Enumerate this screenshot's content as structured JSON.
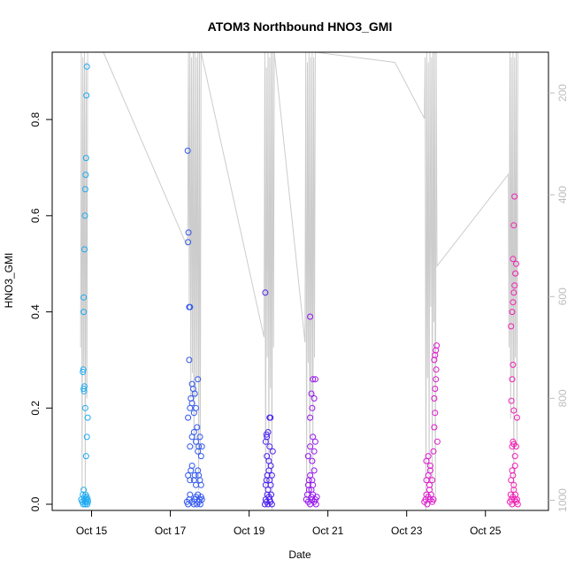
{
  "chart_data": {
    "type": "scatter",
    "title": "ATOM3 Northbound HNO3_GMI",
    "xlabel": "Date",
    "ylabel": "HNO3_GMI",
    "x_ticks": [
      "Oct 15",
      "Oct 17",
      "Oct 19",
      "Oct 21",
      "Oct 23",
      "Oct 25"
    ],
    "x_tick_days": [
      15,
      17,
      19,
      21,
      23,
      25
    ],
    "xlim_days": [
      14.0,
      26.6
    ],
    "y_ticks": [
      "0.0",
      "0.2",
      "0.4",
      "0.6",
      "0.8"
    ],
    "y_tick_values": [
      0.0,
      0.2,
      0.4,
      0.6,
      0.8
    ],
    "ylim": [
      0.0,
      0.94
    ],
    "right_axis": {
      "ticks": [
        "200",
        "400",
        "600",
        "800",
        "1000"
      ],
      "tick_values": [
        200,
        400,
        600,
        800,
        1000
      ],
      "lim": [
        1020,
        120
      ],
      "color": "#bdbdbd"
    },
    "grid": false,
    "series": [
      {
        "color": "#1eaaf0",
        "x": [
          14.74,
          14.76,
          14.78,
          14.79,
          14.8,
          14.81,
          14.82,
          14.83,
          14.84,
          14.85,
          14.86,
          14.87,
          14.88,
          14.89,
          14.9,
          14.91,
          14.78,
          14.79,
          14.8,
          14.81,
          14.82,
          14.84,
          14.86,
          14.88,
          14.9,
          14.8,
          14.8,
          14.82,
          14.83,
          14.84,
          14.85,
          14.86,
          14.87,
          14.88
        ],
        "y": [
          0.01,
          0.005,
          0.02,
          0.0,
          0.03,
          0.01,
          0.015,
          0.005,
          0.0,
          0.02,
          0.01,
          0.005,
          0.015,
          0.0,
          0.01,
          0.005,
          0.275,
          0.28,
          0.24,
          0.235,
          0.245,
          0.2,
          0.1,
          0.14,
          0.18,
          0.43,
          0.4,
          0.53,
          0.6,
          0.655,
          0.685,
          0.72,
          0.85,
          0.91
        ]
      },
      {
        "color": "#2f55ee",
        "x": [
          17.42,
          17.45,
          17.48,
          17.5,
          17.55,
          17.6,
          17.62,
          17.65,
          17.68,
          17.7,
          17.72,
          17.74,
          17.76,
          17.78,
          17.8,
          17.45,
          17.5,
          17.52,
          17.55,
          17.6,
          17.62,
          17.65,
          17.7,
          17.72,
          17.75,
          17.78,
          17.5,
          17.55,
          17.6,
          17.65,
          17.68,
          17.7,
          17.72,
          17.75,
          17.78,
          17.8,
          17.45,
          17.5,
          17.52,
          17.55,
          17.58,
          17.6,
          17.62,
          17.65,
          17.7,
          17.48,
          17.5,
          17.55,
          17.45,
          17.46,
          17.48,
          17.44
        ],
        "y": [
          0.005,
          0.0,
          0.01,
          0.02,
          0.005,
          0.0,
          0.01,
          0.015,
          0.0,
          0.02,
          0.005,
          0.01,
          0.0,
          0.015,
          0.01,
          0.06,
          0.05,
          0.07,
          0.08,
          0.05,
          0.06,
          0.04,
          0.07,
          0.06,
          0.05,
          0.04,
          0.12,
          0.14,
          0.15,
          0.13,
          0.16,
          0.11,
          0.12,
          0.14,
          0.1,
          0.12,
          0.18,
          0.2,
          0.22,
          0.21,
          0.24,
          0.19,
          0.23,
          0.2,
          0.26,
          0.3,
          0.41,
          0.25,
          0.545,
          0.565,
          0.41,
          0.735
        ]
      },
      {
        "color": "#4b20f0",
        "x": [
          19.4,
          19.42,
          19.44,
          19.46,
          19.48,
          19.5,
          19.52,
          19.54,
          19.56,
          19.58,
          19.42,
          19.44,
          19.46,
          19.48,
          19.5,
          19.52,
          19.55,
          19.58,
          19.45,
          19.5,
          19.52,
          19.55,
          19.6,
          19.45,
          19.48,
          19.42,
          19.44,
          19.52,
          19.54,
          19.41
        ],
        "y": [
          0.0,
          0.01,
          0.005,
          0.02,
          0.0,
          0.015,
          0.01,
          0.005,
          0.02,
          0.0,
          0.04,
          0.05,
          0.06,
          0.03,
          0.07,
          0.05,
          0.04,
          0.06,
          0.1,
          0.09,
          0.12,
          0.08,
          0.11,
          0.14,
          0.15,
          0.13,
          0.145,
          0.18,
          0.18,
          0.44
        ]
      },
      {
        "color": "#9616ee",
        "x": [
          20.45,
          20.48,
          20.5,
          20.52,
          20.55,
          20.58,
          20.6,
          20.62,
          20.65,
          20.68,
          20.7,
          20.72,
          20.5,
          20.52,
          20.55,
          20.58,
          20.6,
          20.62,
          20.65,
          20.5,
          20.55,
          20.6,
          20.62,
          20.65,
          20.68,
          20.55,
          20.6,
          20.65,
          20.58,
          20.62,
          20.68,
          20.55
        ],
        "y": [
          0.01,
          0.02,
          0.005,
          0.03,
          0.0,
          0.015,
          0.01,
          0.02,
          0.005,
          0.01,
          0.0,
          0.015,
          0.04,
          0.05,
          0.06,
          0.03,
          0.05,
          0.04,
          0.07,
          0.1,
          0.12,
          0.09,
          0.14,
          0.11,
          0.13,
          0.18,
          0.2,
          0.22,
          0.23,
          0.26,
          0.26,
          0.39
        ]
      },
      {
        "color": "#dd18cc",
        "x": [
          23.45,
          23.48,
          23.5,
          23.52,
          23.55,
          23.58,
          23.6,
          23.62,
          23.65,
          23.68,
          23.5,
          23.55,
          23.58,
          23.6,
          23.65,
          23.5,
          23.55,
          23.6,
          23.68,
          23.7,
          23.72,
          23.7,
          23.72,
          23.74,
          23.75,
          23.7,
          23.72,
          23.74,
          23.76,
          23.78
        ],
        "y": [
          0.005,
          0.01,
          0.02,
          0.0,
          0.015,
          0.03,
          0.01,
          0.02,
          0.005,
          0.01,
          0.05,
          0.06,
          0.04,
          0.07,
          0.05,
          0.09,
          0.1,
          0.08,
          0.11,
          0.16,
          0.19,
          0.22,
          0.24,
          0.26,
          0.28,
          0.3,
          0.31,
          0.32,
          0.33,
          0.13
        ]
      },
      {
        "color": "#f020b4",
        "x": [
          25.62,
          25.64,
          25.66,
          25.68,
          25.7,
          25.72,
          25.74,
          25.76,
          25.78,
          25.8,
          25.82,
          25.65,
          25.68,
          25.7,
          25.72,
          25.75,
          25.68,
          25.7,
          25.72,
          25.75,
          25.78,
          25.66,
          25.68,
          25.7,
          25.72,
          25.8,
          25.65,
          25.68,
          25.7,
          25.72,
          25.74,
          25.76,
          25.78,
          25.7,
          25.72,
          25.74
        ],
        "y": [
          0.005,
          0.02,
          0.01,
          0.0,
          0.015,
          0.03,
          0.01,
          0.02,
          0.005,
          0.01,
          0.0,
          0.05,
          0.07,
          0.06,
          0.04,
          0.08,
          0.12,
          0.13,
          0.125,
          0.1,
          0.12,
          0.215,
          0.26,
          0.29,
          0.195,
          0.18,
          0.37,
          0.4,
          0.42,
          0.44,
          0.455,
          0.48,
          0.5,
          0.51,
          0.58,
          0.64
        ]
      }
    ],
    "overlay_line": {
      "axis": "right",
      "color": "#cccccc",
      "x": [
        14.72,
        14.74,
        14.76,
        14.78,
        14.8,
        14.82,
        14.84,
        14.86,
        14.88,
        14.9,
        15.3,
        17.42,
        17.44,
        17.46,
        17.48,
        17.5,
        17.52,
        17.54,
        17.56,
        17.58,
        17.6,
        17.62,
        17.64,
        17.66,
        17.68,
        17.7,
        17.72,
        17.74,
        17.76,
        17.78,
        19.38,
        19.4,
        19.42,
        19.44,
        19.46,
        19.48,
        19.5,
        19.52,
        19.54,
        19.56,
        19.58,
        19.6,
        19.62,
        19.64,
        20.42,
        20.44,
        20.46,
        20.48,
        20.5,
        20.52,
        20.54,
        20.56,
        20.58,
        20.6,
        20.62,
        20.64,
        20.66,
        20.68,
        22.7,
        23.45,
        23.47,
        23.49,
        23.51,
        23.53,
        23.55,
        23.57,
        23.59,
        23.61,
        23.63,
        23.65,
        23.67,
        23.69,
        23.71,
        23.73,
        23.75,
        23.77,
        25.58,
        25.6,
        25.62,
        25.64,
        25.66,
        25.68,
        25.7,
        25.72,
        25.74,
        25.76,
        25.78,
        25.8,
        25.82
      ],
      "y": [
        700,
        120,
        980,
        130,
        740,
        120,
        1010,
        140,
        800,
        120,
        120,
        500,
        480,
        120,
        620,
        120,
        800,
        130,
        750,
        120,
        900,
        120,
        800,
        130,
        760,
        120,
        980,
        120,
        900,
        120,
        680,
        120,
        1000,
        150,
        720,
        120,
        960,
        130,
        780,
        120,
        1020,
        120,
        700,
        120,
        690,
        120,
        1000,
        140,
        730,
        120,
        1010,
        130,
        800,
        120,
        950,
        130,
        720,
        120,
        140,
        250,
        130,
        1020,
        120,
        760,
        140,
        960,
        120,
        620,
        130,
        980,
        120,
        650,
        120,
        1000,
        120,
        540,
        360,
        700,
        120,
        840,
        130,
        760,
        120,
        1010,
        130,
        720,
        120,
        900,
        120
      ]
    }
  }
}
